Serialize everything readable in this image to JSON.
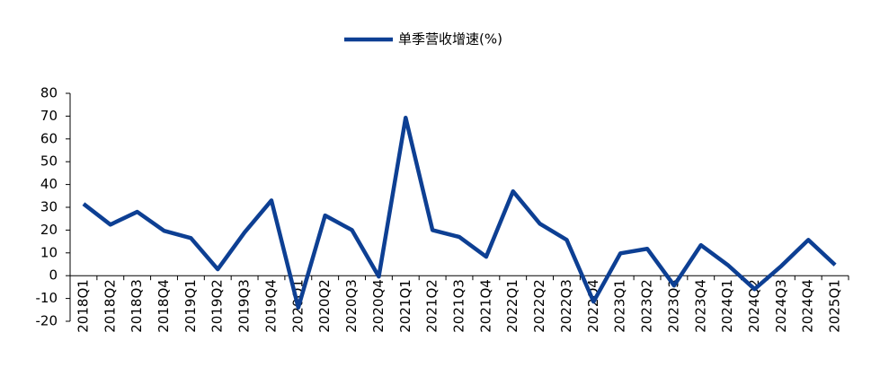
{
  "chart_data": {
    "type": "line",
    "categories": [
      "2018Q1",
      "2018Q2",
      "2018Q3",
      "2018Q4",
      "2019Q1",
      "2019Q2",
      "2019Q3",
      "2019Q4",
      "2020Q1",
      "2020Q2",
      "2020Q3",
      "2020Q4",
      "2021Q1",
      "2021Q2",
      "2021Q3",
      "2021Q4",
      "2022Q1",
      "2022Q2",
      "2022Q3",
      "2022Q4",
      "2023Q1",
      "2023Q2",
      "2023Q3",
      "2023Q4",
      "2024Q1",
      "2024Q2",
      "2024Q3",
      "2024Q4",
      "2025Q1"
    ],
    "series": [
      {
        "name": "单季营收增速(%)",
        "color": "#0d3f93",
        "values": [
          31.5,
          22.4,
          28,
          19.7,
          16.5,
          2.8,
          19,
          33,
          -14,
          26.4,
          20,
          -0.4,
          69.3,
          20,
          17,
          8.3,
          37,
          22.8,
          15.7,
          -11.4,
          9.8,
          11.8,
          -4.3,
          13.4,
          4.7,
          -5.9,
          4.3,
          15.7,
          4.7
        ]
      }
    ],
    "ylim": [
      -20,
      80
    ],
    "yticks": [
      -20,
      -10,
      0,
      10,
      20,
      30,
      40,
      50,
      60,
      70,
      80
    ],
    "legend": "top"
  }
}
